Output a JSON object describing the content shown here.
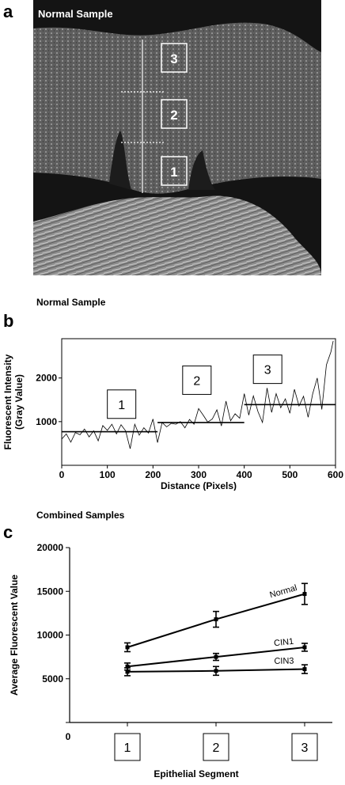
{
  "colors": {
    "background": "#ffffff",
    "ink": "#000000",
    "micrograph_dark": "#151515",
    "micrograph_tissue": "#6a6a6a",
    "micrograph_stroma": "#9a9a9a"
  },
  "panel_a": {
    "letter": "a",
    "image_title": "Normal Sample",
    "segments": [
      "1",
      "2",
      "3"
    ]
  },
  "panel_b": {
    "letter": "b",
    "subtitle": "Normal Sample"
  },
  "panel_c": {
    "letter": "c",
    "subtitle": "Combined Samples"
  },
  "chart_data": [
    {
      "type": "line",
      "title": "Normal Sample",
      "xlabel": "Distance (Pixels)",
      "ylabel": "Fluorescent Intensity (Gray Value)",
      "xlim": [
        0,
        600
      ],
      "ylim": [
        0,
        2900
      ],
      "xticks": [
        0,
        100,
        200,
        300,
        400,
        500,
        600
      ],
      "yticks": [
        1000,
        2000
      ],
      "grid": false,
      "segment_labels": [
        "1",
        "2",
        "3"
      ],
      "x": [
        0,
        10,
        20,
        30,
        40,
        50,
        60,
        70,
        80,
        90,
        100,
        110,
        120,
        130,
        140,
        150,
        160,
        170,
        180,
        190,
        200,
        210,
        220,
        230,
        240,
        250,
        260,
        270,
        280,
        290,
        300,
        310,
        320,
        330,
        340,
        350,
        360,
        370,
        380,
        390,
        400,
        410,
        420,
        430,
        440,
        450,
        460,
        470,
        480,
        490,
        500,
        510,
        520,
        530,
        540,
        550,
        560,
        570,
        580,
        590,
        595
      ],
      "series": [
        {
          "values": [
            600,
            720,
            530,
            750,
            700,
            830,
            650,
            790,
            560,
            910,
            800,
            940,
            720,
            930,
            790,
            380,
            940,
            690,
            860,
            740,
            1060,
            520,
            980,
            880,
            960,
            940,
            1000,
            860,
            1050,
            940,
            1300,
            1150,
            990,
            1060,
            1270,
            900,
            1470,
            1020,
            1180,
            1080,
            1640,
            1150,
            1590,
            1230,
            980,
            1770,
            1210,
            1640,
            1320,
            1520,
            1190,
            1740,
            1360,
            1580,
            1100,
            1640,
            2000,
            1280,
            2300,
            2600,
            2850
          ]
        }
      ],
      "segment_means": [
        {
          "x": [
            0,
            210
          ],
          "value": 770
        },
        {
          "x": [
            210,
            400
          ],
          "value": 980
        },
        {
          "x": [
            400,
            600
          ],
          "value": 1390
        }
      ]
    },
    {
      "type": "line",
      "title": "Combined Samples",
      "xlabel": "Epithelial Segment",
      "ylabel": "Average Fluorescent Value",
      "categories": [
        "1",
        "2",
        "3"
      ],
      "ylim": [
        0,
        20000
      ],
      "yticks": [
        0,
        5000,
        10000,
        15000,
        20000
      ],
      "grid": false,
      "series": [
        {
          "name": "Normal",
          "values": [
            8600,
            11800,
            14700
          ],
          "error": [
            500,
            900,
            1200
          ]
        },
        {
          "name": "CIN1",
          "values": [
            6400,
            7500,
            8600
          ],
          "error": [
            400,
            400,
            450
          ]
        },
        {
          "name": "CIN3",
          "values": [
            5800,
            5900,
            6100
          ],
          "error": [
            450,
            500,
            500
          ]
        }
      ]
    }
  ]
}
